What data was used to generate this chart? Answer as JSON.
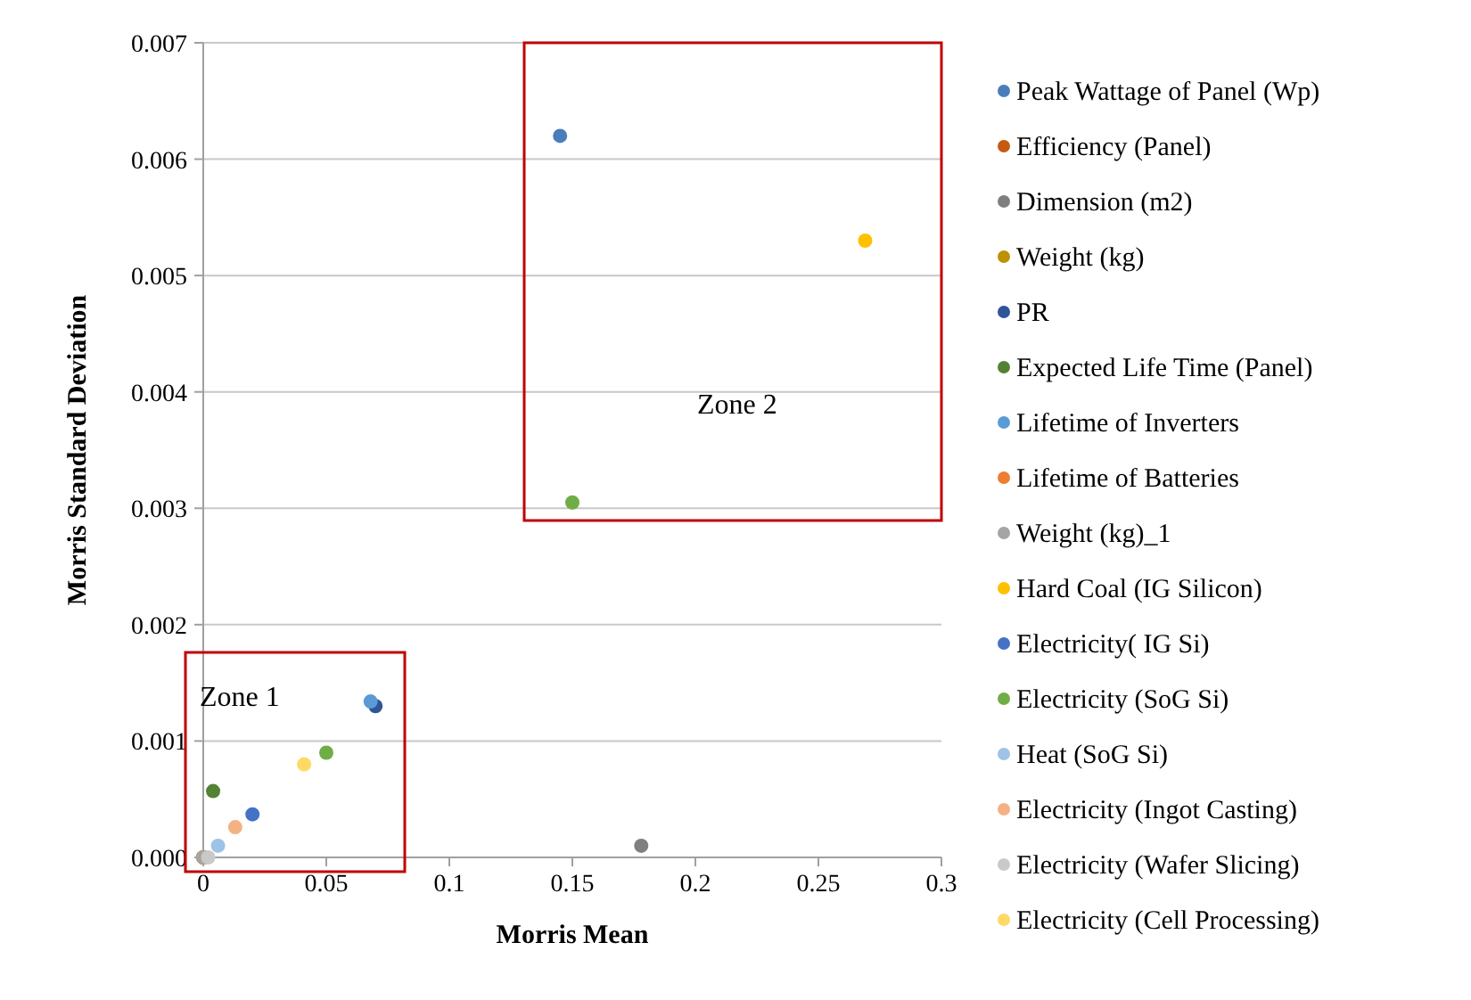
{
  "chart_data": {
    "type": "scatter",
    "xlabel": "Morris Mean",
    "ylabel": "Morris Standard Deviation",
    "xlim": [
      0,
      0.3
    ],
    "xticks": [
      0,
      0.05,
      0.1,
      0.15,
      0.2,
      0.25,
      0.3
    ],
    "ylim": [
      0,
      0.007
    ],
    "yticks": [
      {
        "value": 0,
        "label": "0.000"
      },
      {
        "value": 0.001,
        "label": "0.001"
      },
      {
        "value": 0.002,
        "label": "0.002"
      },
      {
        "value": 0.003,
        "label": "0.003"
      },
      {
        "value": 0.004,
        "label": "0.004"
      },
      {
        "value": 0.005,
        "label": "0.005"
      },
      {
        "value": 0.006,
        "label": "0.006"
      },
      {
        "value": 0.007,
        "label": "0.007"
      }
    ],
    "grid": "y",
    "legend": "right",
    "marker": "circle",
    "annotations": [
      "Zone 1",
      "Zone 2"
    ],
    "series": [
      {
        "name": "Peak Wattage of Panel (Wp)",
        "color": "#4a7ebb",
        "x": [
          0.145
        ],
        "values": [
          0.0062
        ]
      },
      {
        "name": "Efficiency (Panel)",
        "color": "#c55a11",
        "x": [
          0
        ],
        "values": [
          0
        ]
      },
      {
        "name": "Dimension (m2)",
        "color": "#7f7f7f",
        "x": [
          0.178
        ],
        "values": [
          0.0001
        ]
      },
      {
        "name": "Weight (kg)",
        "color": "#bf9000",
        "x": [
          0
        ],
        "values": [
          0
        ]
      },
      {
        "name": "PR",
        "color": "#2f5597",
        "x": [
          0.07
        ],
        "values": [
          0.0013
        ]
      },
      {
        "name": "Expected Life Time (Panel)",
        "color": "#548235",
        "x": [
          0.004
        ],
        "values": [
          0.00057
        ]
      },
      {
        "name": "Lifetime of Inverters",
        "color": "#5b9bd5",
        "x": [
          0.068
        ],
        "values": [
          0.00134
        ]
      },
      {
        "name": "Lifetime of Batteries",
        "color": "#ed7d31",
        "x": [
          0
        ],
        "values": [
          0
        ]
      },
      {
        "name": "Weight (kg)_1",
        "color": "#a5a5a5",
        "x": [
          0
        ],
        "values": [
          0
        ]
      },
      {
        "name": "Hard Coal (IG Silicon)",
        "color": "#ffc000",
        "x": [
          0.269
        ],
        "values": [
          0.0053
        ]
      },
      {
        "name": "Electricity( IG Si)",
        "color": "#4472c4",
        "x": [
          0.02
        ],
        "values": [
          0.00037
        ]
      },
      {
        "name": "Electricity (SoG Si)",
        "color": "#70ad47",
        "x": [
          0.15,
          0.05
        ],
        "values": [
          0.00305,
          0.0009
        ]
      },
      {
        "name": "Heat (SoG Si)",
        "color": "#9dc3e6",
        "x": [
          0.006
        ],
        "values": [
          0.0001
        ]
      },
      {
        "name": "Electricity (Ingot Casting)",
        "color": "#f4b183",
        "x": [
          0.013
        ],
        "values": [
          0.00026
        ]
      },
      {
        "name": "Electricity (Wafer Slicing)",
        "color": "#c9c9c9",
        "x": [
          0.002
        ],
        "values": [
          0
        ]
      },
      {
        "name": "Electricity (Cell Processing)",
        "color": "#ffd966",
        "x": [
          0.041
        ],
        "values": [
          0.0008
        ]
      }
    ]
  }
}
